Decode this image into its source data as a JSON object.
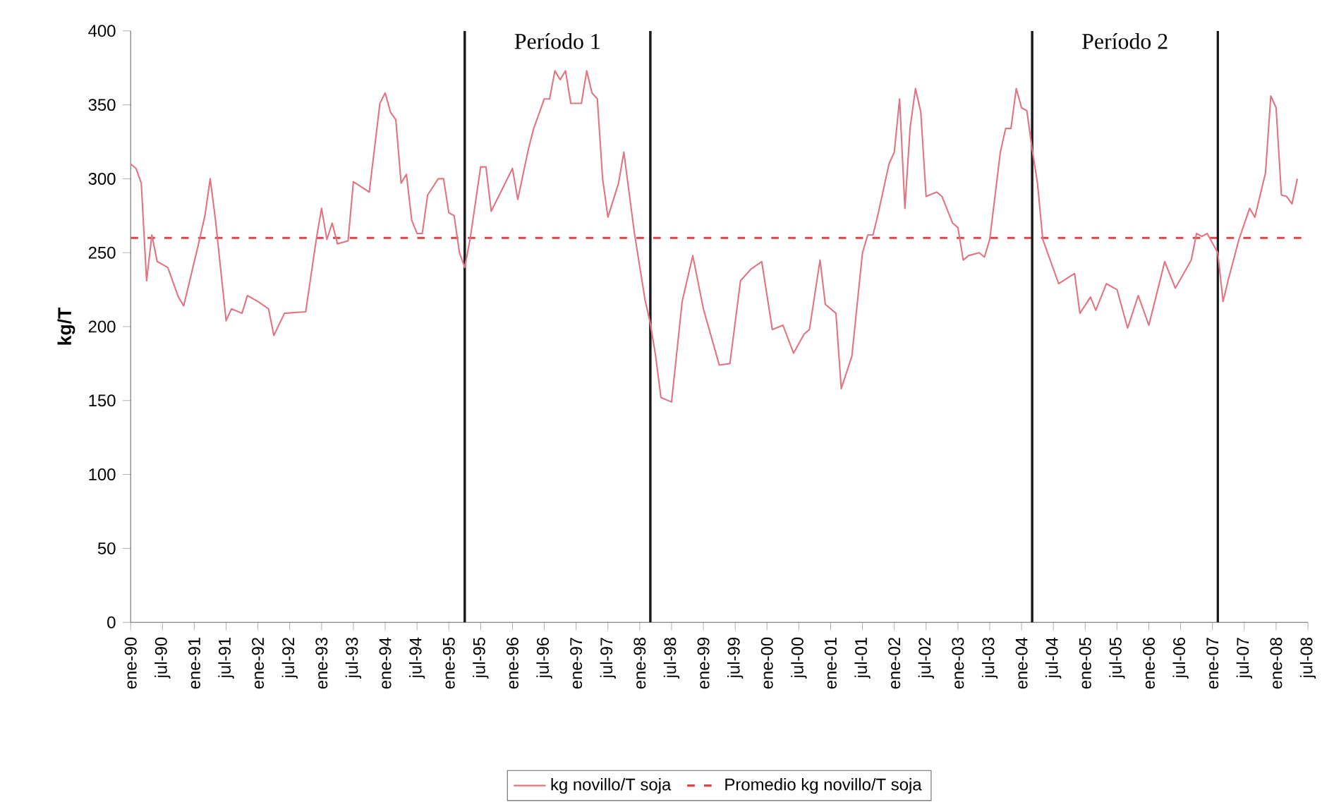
{
  "chart_data": {
    "type": "line",
    "ylabel": "kg/T",
    "xlim": [
      "1990-01",
      "2008-07"
    ],
    "ylim": [
      0,
      400
    ],
    "yticks": [
      0,
      50,
      100,
      150,
      200,
      250,
      300,
      350,
      400
    ],
    "xticks": [
      {
        "value": "1990-01",
        "label": "ene-90"
      },
      {
        "value": "1990-07",
        "label": "jul-90"
      },
      {
        "value": "1991-01",
        "label": "ene-91"
      },
      {
        "value": "1991-07",
        "label": "jul-91"
      },
      {
        "value": "1992-01",
        "label": "ene-92"
      },
      {
        "value": "1992-07",
        "label": "jul-92"
      },
      {
        "value": "1993-01",
        "label": "ene-93"
      },
      {
        "value": "1993-07",
        "label": "jul-93"
      },
      {
        "value": "1994-01",
        "label": "ene-94"
      },
      {
        "value": "1994-07",
        "label": "jul-94"
      },
      {
        "value": "1995-01",
        "label": "ene-95"
      },
      {
        "value": "1995-07",
        "label": "jul-95"
      },
      {
        "value": "1996-01",
        "label": "ene-96"
      },
      {
        "value": "1996-07",
        "label": "jul-96"
      },
      {
        "value": "1997-01",
        "label": "ene-97"
      },
      {
        "value": "1997-07",
        "label": "jul-97"
      },
      {
        "value": "1998-01",
        "label": "ene-98"
      },
      {
        "value": "1998-07",
        "label": "jul-98"
      },
      {
        "value": "1999-01",
        "label": "ene-99"
      },
      {
        "value": "1999-07",
        "label": "jul-99"
      },
      {
        "value": "2000-01",
        "label": "ene-00"
      },
      {
        "value": "2000-07",
        "label": "jul-00"
      },
      {
        "value": "2001-01",
        "label": "ene-01"
      },
      {
        "value": "2001-07",
        "label": "jul-01"
      },
      {
        "value": "2002-01",
        "label": "ene-02"
      },
      {
        "value": "2002-07",
        "label": "jul-02"
      },
      {
        "value": "2003-01",
        "label": "ene-03"
      },
      {
        "value": "2003-07",
        "label": "jul-03"
      },
      {
        "value": "2004-01",
        "label": "ene-04"
      },
      {
        "value": "2004-07",
        "label": "jul-04"
      },
      {
        "value": "2005-01",
        "label": "ene-05"
      },
      {
        "value": "2005-07",
        "label": "jul-05"
      },
      {
        "value": "2006-01",
        "label": "ene-06"
      },
      {
        "value": "2006-07",
        "label": "jul-06"
      },
      {
        "value": "2007-01",
        "label": "ene-07"
      },
      {
        "value": "2007-07",
        "label": "jul-07"
      },
      {
        "value": "2008-01",
        "label": "ene-08"
      },
      {
        "value": "2008-07",
        "label": "jul-08"
      }
    ],
    "series": [
      {
        "name": "kg novillo/T soja",
        "color": "#e07584",
        "x": [
          "1990-01",
          "1990-02",
          "1990-03",
          "1990-04",
          "1990-05",
          "1990-06",
          "1990-08",
          "1990-10",
          "1990-11",
          "1991-02",
          "1991-03",
          "1991-04",
          "1991-05",
          "1991-07",
          "1991-08",
          "1991-10",
          "1991-11",
          "1992-01",
          "1992-03",
          "1992-04",
          "1992-06",
          "1992-10",
          "1992-12",
          "1993-01",
          "1993-02",
          "1993-03",
          "1993-04",
          "1993-06",
          "1993-07",
          "1993-10",
          "1993-12",
          "1994-01",
          "1994-02",
          "1994-03",
          "1994-04",
          "1994-05",
          "1994-06",
          "1994-07",
          "1994-08",
          "1994-09",
          "1994-11",
          "1994-12",
          "1995-01",
          "1995-02",
          "1995-03",
          "1995-04",
          "1995-05",
          "1995-07",
          "1995-08",
          "1995-09",
          "1996-01",
          "1996-02",
          "1996-04",
          "1996-05",
          "1996-07",
          "1996-08",
          "1996-09",
          "1996-10",
          "1996-11",
          "1996-12",
          "1997-02",
          "1997-03",
          "1997-04",
          "1997-05",
          "1997-06",
          "1997-07",
          "1997-09",
          "1997-10",
          "1997-12",
          "1998-02",
          "1998-03",
          "1998-04",
          "1998-05",
          "1998-07",
          "1998-09",
          "1998-11",
          "1999-01",
          "1999-04",
          "1999-06",
          "1999-08",
          "1999-10",
          "1999-12",
          "2000-02",
          "2000-04",
          "2000-06",
          "2000-08",
          "2000-09",
          "2000-11",
          "2000-12",
          "2001-02",
          "2001-03",
          "2001-05",
          "2001-07",
          "2001-08",
          "2001-09",
          "2001-10",
          "2001-12",
          "2002-01",
          "2002-02",
          "2002-03",
          "2002-04",
          "2002-05",
          "2002-06",
          "2002-07",
          "2002-09",
          "2002-10",
          "2002-12",
          "2003-01",
          "2003-02",
          "2003-03",
          "2003-05",
          "2003-06",
          "2003-07",
          "2003-09",
          "2003-10",
          "2003-11",
          "2003-12",
          "2004-01",
          "2004-02",
          "2004-03",
          "2004-04",
          "2004-05",
          "2004-07",
          "2004-08",
          "2004-11",
          "2004-12",
          "2005-02",
          "2005-03",
          "2005-05",
          "2005-07",
          "2005-09",
          "2005-11",
          "2006-01",
          "2006-04",
          "2006-06",
          "2006-09",
          "2006-10",
          "2006-11",
          "2006-12",
          "2007-02",
          "2007-03",
          "2007-04",
          "2007-06",
          "2007-08",
          "2007-09",
          "2007-11",
          "2007-12",
          "2008-01",
          "2008-02",
          "2008-03",
          "2008-04",
          "2008-05"
        ],
        "values": [
          310,
          307,
          297,
          231,
          262,
          244,
          240,
          220,
          214,
          259,
          275,
          300,
          272,
          204,
          212,
          209,
          221,
          217,
          212,
          194,
          209,
          210,
          259,
          280,
          259,
          270,
          256,
          258,
          298,
          291,
          351,
          358,
          345,
          340,
          297,
          303,
          272,
          263,
          263,
          289,
          300,
          300,
          277,
          275,
          250,
          240,
          259,
          308,
          308,
          278,
          307,
          286,
          320,
          334,
          354,
          354,
          373,
          367,
          373,
          351,
          351,
          373,
          358,
          354,
          300,
          274,
          297,
          318,
          263,
          218,
          202,
          180,
          152,
          149,
          217,
          248,
          212,
          174,
          175,
          231,
          239,
          244,
          198,
          201,
          182,
          195,
          198,
          245,
          215,
          209,
          158,
          180,
          250,
          262,
          262,
          277,
          310,
          318,
          354,
          280,
          335,
          361,
          345,
          288,
          291,
          288,
          270,
          267,
          245,
          248,
          250,
          247,
          259,
          318,
          334,
          334,
          361,
          348,
          346,
          320,
          297,
          259,
          239,
          229,
          236,
          209,
          220,
          211,
          229,
          225,
          199,
          221,
          201,
          244,
          226,
          245,
          263,
          261,
          263,
          250,
          217,
          232,
          259,
          280,
          274,
          304,
          356,
          348,
          289,
          288,
          283,
          300
        ]
      }
    ],
    "ref_lines": [
      {
        "axis": "y",
        "value": 260,
        "label": "Promedio kg novillo/T soja",
        "color": "#d9464a",
        "line_style": "dashed"
      },
      {
        "axis": "x",
        "value": "1995-04",
        "color": "#1a1a1a"
      },
      {
        "axis": "x",
        "value": "1998-03",
        "color": "#1a1a1a"
      },
      {
        "axis": "x",
        "value": "2004-03",
        "color": "#1a1a1a"
      },
      {
        "axis": "x",
        "value": "2007-02",
        "color": "#1a1a1a"
      }
    ],
    "annotations": [
      "Período 1",
      "Período 2"
    ],
    "legend": "bottom",
    "grid": false,
    "marker": "none",
    "line_style": "solid"
  }
}
